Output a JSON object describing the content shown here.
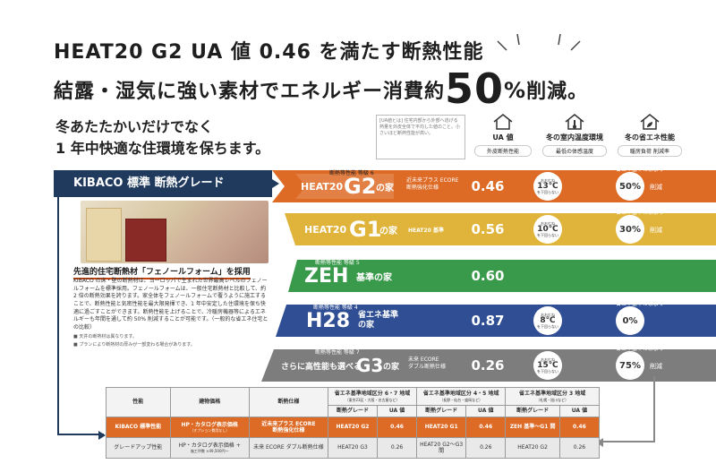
{
  "headline": {
    "line1": "HEAT20 G2 UA 値 0.46 を満たす断熱性能",
    "line2_pre": "結露・湿気に強い素材でエネルギー消費約",
    "line2_big": "50",
    "line2_pct": "%",
    "line2_post": "削減。"
  },
  "subheadline": {
    "line1": "冬あたたかいだけでなく",
    "line2": "1 年中快適な住環境を保ちます。"
  },
  "ua_note": "[UA値とは] 住宅内部から外部へ逃げる熱量を外皮全体で平均した値のこと。小さいほど断熱性能が高い。",
  "columns": [
    {
      "title": "UA 値",
      "caption": "外皮断熱性能"
    },
    {
      "title": "冬の室内温度環境",
      "caption": "最低の体感温度"
    },
    {
      "title": "冬の省エネ性能",
      "caption": "暖房負荷 削減率"
    }
  ],
  "grade_label": "KIBACO 標準 断熱グレード",
  "feature": {
    "title": "先進的住宅断熱材「フェノールフォーム」を採用",
    "body": "KIBACO の床・壁の断熱材は、ヨーロッパで生まれた世界最高レベルのフェノールフォームを標準採用。フェノールフォームは、一般住宅断熱材と比較して、約 2 倍の断熱効果を誇ります。家全体をフェノールフォームで覆うように施工することで、断熱性能と気密性能を最大限発揮でき、1 年中安定した住環境を保ち快適に過ごすことができます。断熱性能を上げることで、冷暖房機器等によるエネルギーも年間を通して約 50% 削減することが可能です。（一般的な省エネ住宅との比較）",
    "note1": "■ 天井の断熱材は異なります。",
    "note2": "■ プランにより断熱材の厚みが一部変わる場合があります。"
  },
  "tiers": [
    {
      "caption": "断熱等性能 等級 6",
      "prefix": "HEAT20",
      "grade": "G2",
      "suffix": "の家",
      "desc1": "近未来プラス ECORE",
      "desc2": "断熱強化仕様",
      "ua": "0.46",
      "house_label": "おおむね",
      "temp": "13℃",
      "temp_note": "を下回らない",
      "eco": "50%",
      "eco_label": "削減",
      "eco_caption": "省エネ基準の家より"
    },
    {
      "caption": "",
      "prefix": "HEAT20",
      "grade": "G1",
      "suffix": "の家",
      "desc1": "HEAT20 基準",
      "desc2": "",
      "ua": "0.56",
      "house_label": "おおむね",
      "temp": "10℃",
      "temp_note": "を下回らない",
      "eco": "30%",
      "eco_label": "削減",
      "eco_caption": "省エネ基準の家より"
    },
    {
      "caption": "断熱等性能 等級 5",
      "prefix": "",
      "grade": "ZEH",
      "suffix": "基準の家",
      "desc1": "",
      "desc2": "",
      "ua": "0.60",
      "house_label": "",
      "temp": "",
      "temp_note": "",
      "eco": "",
      "eco_label": "",
      "eco_caption": ""
    },
    {
      "caption": "断熱等性能 等級 4",
      "prefix": "",
      "grade": "H28",
      "suffix": "省エネ基準の家",
      "desc1": "",
      "desc2": "",
      "ua": "0.87",
      "house_label": "おおむね",
      "temp": "8℃",
      "temp_note": "を下回らない",
      "eco": "0%",
      "eco_label": "",
      "eco_caption": "省エネ基準の家より"
    },
    {
      "caption": "断熱等性能 等級 7",
      "prefix": "さらに高性能も選べる",
      "grade": "G3",
      "suffix": "の家",
      "desc1": "未来 ECORE",
      "desc2": "ダブル断熱仕様",
      "ua": "0.26",
      "house_label": "おおむね",
      "temp": "15℃",
      "temp_note": "を下回らない",
      "eco": "75%",
      "eco_label": "削減",
      "eco_caption": "省エネ基準の家より"
    }
  ],
  "table": {
    "headers": [
      "性能",
      "建物価格",
      "断熱仕様"
    ],
    "regions": [
      {
        "title": "省エネ基準地域区分 6・7 地域",
        "sub": "（東京23区・大阪・名古屋など）"
      },
      {
        "title": "省エネ基準地域区分 4・5 地域",
        "sub": "（長野・仙台・盛岡など）"
      },
      {
        "title": "省エネ基準地域区分 3 地域",
        "sub": "（札幌・旭川など）"
      }
    ],
    "subcols": [
      "断熱グレード",
      "UA 値"
    ],
    "rows": [
      {
        "name": "KIBACO 標準性能",
        "price": "HP・カタログ表示価格",
        "price_sub": "（オプション費用なし）",
        "spec1": "近未来プラス ECORE",
        "spec2": "断熱強化仕様",
        "r1g": "HEAT20 G2",
        "r1u": "0.46",
        "r2g": "HEAT20 G1",
        "r2u": "0.46",
        "r3g": "ZEH 基準～G1 間",
        "r3u": "0.46"
      },
      {
        "name": "グレードアップ性能",
        "price": "HP・カタログ表示価格 +",
        "price_sub": "施工坪数 ×49,500円～",
        "spec1": "未来 ECORE ダブル断熱仕様",
        "spec2": "",
        "r1g": "HEAT20 G3",
        "r1u": "0.26",
        "r2g": "HEAT20 G2～G3 間",
        "r2u": "0.26",
        "r3g": "HEAT20 G2",
        "r3u": "0.26"
      }
    ]
  },
  "colors": {
    "navy": "#1f3a5c",
    "tier1": "#dd6a25",
    "tier2": "#e0b43a",
    "tier3": "#3a9a4c",
    "tier4": "#2f4e94",
    "tier5": "#7d7d7d"
  }
}
